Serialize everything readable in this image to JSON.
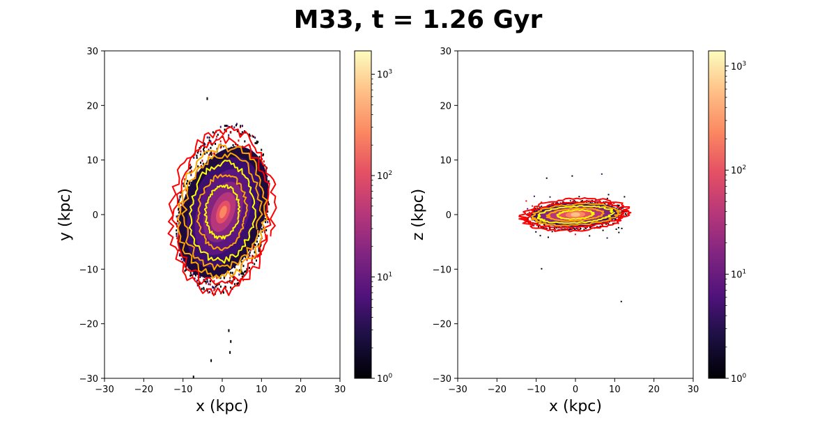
{
  "figure": {
    "title": "M33, t =  1.26 Gyr"
  },
  "chart_data": [
    {
      "type": "heatmap",
      "panel": "left",
      "xlabel": "x (kpc)",
      "ylabel": "y (kpc)",
      "xlim": [
        -30,
        30
      ],
      "ylim": [
        -30,
        30
      ],
      "xticks": [
        "−30",
        "−20",
        "−10",
        "0",
        "10",
        "20",
        "30"
      ],
      "yticks": [
        "−30",
        "−20",
        "−10",
        "0",
        "10",
        "20",
        "30"
      ],
      "grid": false,
      "colormap": "magma",
      "colorbar": {
        "scale": "log",
        "range": [
          1,
          1700
        ],
        "major_labels": [
          {
            "value": 1,
            "base": "10",
            "exp": "0"
          },
          {
            "value": 10,
            "base": "10",
            "exp": "1"
          },
          {
            "value": 100,
            "base": "10",
            "exp": "2"
          },
          {
            "value": 1000,
            "base": "10",
            "exp": "3"
          }
        ]
      },
      "distribution": {
        "center": [
          0,
          0
        ],
        "extent_x": [
          -14,
          14
        ],
        "extent_y": [
          -16,
          22
        ],
        "shape": "face-on elliptical disk"
      },
      "contour_colors": [
        "#ff0000",
        "#ffa500",
        "#ffff00"
      ],
      "outliers": [
        [
          -3,
          -26.5
        ],
        [
          1.5,
          -21
        ],
        [
          2,
          -23
        ],
        [
          1.8,
          -25
        ],
        [
          -7.5,
          -29.5
        ],
        [
          -4,
          21.5
        ]
      ]
    },
    {
      "type": "heatmap",
      "panel": "right",
      "xlabel": "x (kpc)",
      "ylabel": "z (kpc)",
      "xlim": [
        -30,
        30
      ],
      "ylim": [
        -30,
        30
      ],
      "xticks": [
        "−30",
        "−20",
        "−10",
        "0",
        "10",
        "20",
        "30"
      ],
      "yticks": [
        "−30",
        "−20",
        "−10",
        "0",
        "10",
        "20",
        "30"
      ],
      "grid": false,
      "colormap": "magma",
      "colorbar": {
        "scale": "log",
        "range": [
          1,
          1400
        ],
        "major_labels": [
          {
            "value": 1,
            "base": "10",
            "exp": "0"
          },
          {
            "value": 10,
            "base": "10",
            "exp": "1"
          },
          {
            "value": 100,
            "base": "10",
            "exp": "2"
          },
          {
            "value": 1000,
            "base": "10",
            "exp": "3"
          }
        ]
      },
      "distribution": {
        "center": [
          0,
          0
        ],
        "extent_x": [
          -14,
          14
        ],
        "extent_z": [
          -10,
          7
        ],
        "shape": "edge-on thin disk"
      },
      "contour_colors": [
        "#ff0000",
        "#ffa500",
        "#ffff00"
      ],
      "outliers": [
        [
          11.5,
          -15.8
        ],
        [
          -8.8,
          -9.8
        ],
        [
          -7.5,
          6.8
        ],
        [
          -1,
          7.2
        ]
      ]
    }
  ]
}
